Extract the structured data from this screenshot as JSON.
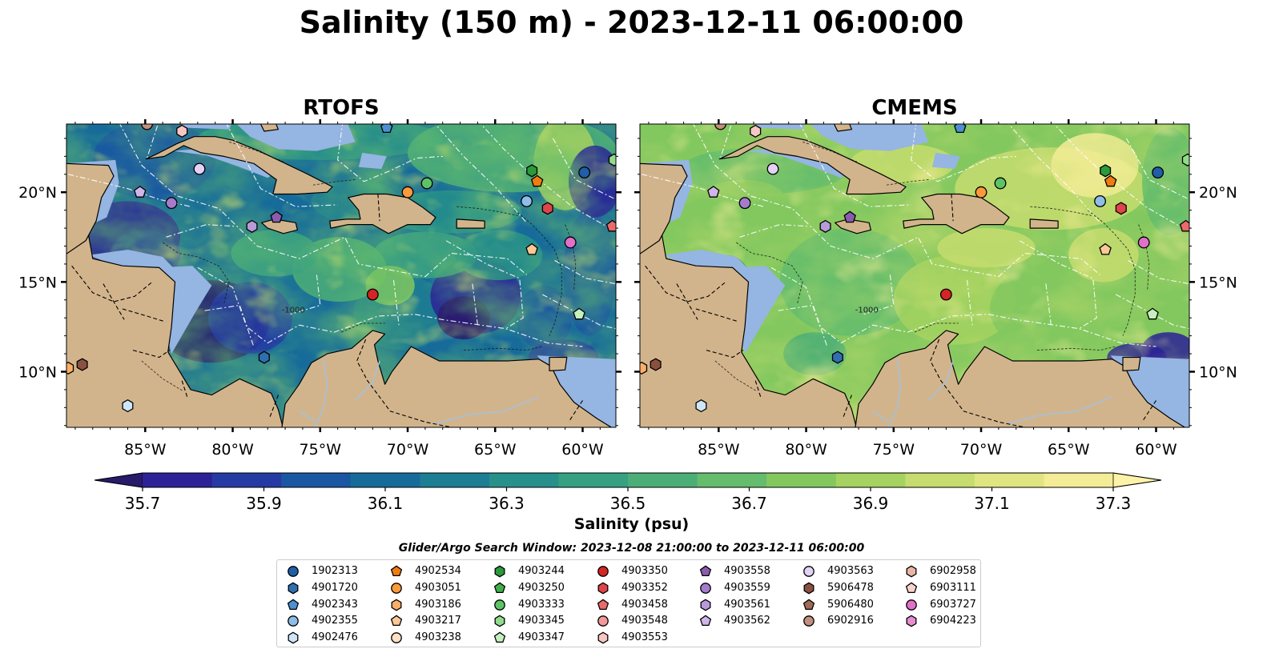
{
  "figure": {
    "title": "Salinity (150 m) - 2023-12-11 06:00:00",
    "colors": {
      "land": "#d2b48c",
      "shelf_shallow": "#95b5e2",
      "rivers": "#a7c0d8",
      "boundaries": "#000000",
      "eez_lines": "#ffffff"
    }
  },
  "panels": [
    {
      "title": "RTOFS",
      "model": "rtofs"
    },
    {
      "title": "CMEMS",
      "model": "cmems"
    }
  ],
  "axes": {
    "lon_ticks": [
      "85°W",
      "80°W",
      "75°W",
      "70°W",
      "65°W",
      "60°W"
    ],
    "lat_ticks_left": [
      "20°N",
      "15°N",
      "10°N"
    ],
    "lat_ticks_right": [
      "20°N",
      "15°N",
      "10°N"
    ],
    "lon_range": [
      -89.5,
      -58.1
    ],
    "lat_range": [
      6.9,
      23.8
    ]
  },
  "colorbar": {
    "label": "Salinity (psu)",
    "ticks": [
      "35.7",
      "35.9",
      "36.1",
      "36.3",
      "36.5",
      "36.7",
      "36.9",
      "37.1",
      "37.3"
    ],
    "range": [
      35.7,
      37.3
    ],
    "extend": "both",
    "colormap": "haline-like",
    "colors": [
      "#2a1a6a",
      "#2c2196",
      "#263aa4",
      "#1a56a2",
      "#166b9a",
      "#1d7d92",
      "#27908a",
      "#37a083",
      "#4cae77",
      "#64bc6c",
      "#83c85f",
      "#a5d260",
      "#c6dc6e",
      "#e1e581",
      "#f4ec96",
      "#fdf3a8"
    ]
  },
  "search_window": "Glider/Argo Search Window: 2023-12-08 21:00:00 to 2023-12-11 06:00:00",
  "legend": [
    [
      {
        "label": "1902313",
        "marker": "circle",
        "color": "#1f5fa8"
      },
      {
        "label": "4901720",
        "marker": "hexagon",
        "color": "#2f6fb0"
      },
      {
        "label": "4902343",
        "marker": "pentagon",
        "color": "#4d8fd0"
      },
      {
        "label": "4902355",
        "marker": "circle",
        "color": "#8fbde8"
      },
      {
        "label": "4902476",
        "marker": "hexagon",
        "color": "#cfe6f8"
      }
    ],
    [
      {
        "label": "4902534",
        "marker": "pentagon",
        "color": "#f07c10"
      },
      {
        "label": "4903051",
        "marker": "circle",
        "color": "#fb9a3a"
      },
      {
        "label": "4903186",
        "marker": "hexagon",
        "color": "#fcae68"
      },
      {
        "label": "4903217",
        "marker": "pentagon",
        "color": "#fdc796"
      },
      {
        "label": "4903238",
        "marker": "circle",
        "color": "#fee0c2"
      }
    ],
    [
      {
        "label": "4903244",
        "marker": "hexagon",
        "color": "#2a9a3a"
      },
      {
        "label": "4903250",
        "marker": "pentagon",
        "color": "#41b04a"
      },
      {
        "label": "4903333",
        "marker": "circle",
        "color": "#5cc466"
      },
      {
        "label": "4903345",
        "marker": "hexagon",
        "color": "#90dc8a"
      },
      {
        "label": "4903347",
        "marker": "pentagon",
        "color": "#c4f0bd"
      }
    ],
    [
      {
        "label": "4903350",
        "marker": "circle",
        "color": "#d42424"
      },
      {
        "label": "4903352",
        "marker": "hexagon",
        "color": "#e0444a"
      },
      {
        "label": "4903458",
        "marker": "pentagon",
        "color": "#ea6a6a"
      },
      {
        "label": "4903548",
        "marker": "circle",
        "color": "#f29a9a"
      },
      {
        "label": "4903553",
        "marker": "hexagon",
        "color": "#f8c6c2"
      }
    ],
    [
      {
        "label": "4903558",
        "marker": "pentagon",
        "color": "#8a5cb0"
      },
      {
        "label": "4903559",
        "marker": "circle",
        "color": "#a57ccc"
      },
      {
        "label": "4903561",
        "marker": "hexagon",
        "color": "#b99ad8"
      },
      {
        "label": "4903562",
        "marker": "pentagon",
        "color": "#cfb6ea"
      }
    ],
    [
      {
        "label": "4903563",
        "marker": "circle",
        "color": "#e3d2f4"
      },
      {
        "label": "5906478",
        "marker": "hexagon",
        "color": "#8a5040"
      },
      {
        "label": "5906480",
        "marker": "pentagon",
        "color": "#a06a58"
      },
      {
        "label": "6902916",
        "marker": "circle",
        "color": "#c2907e"
      }
    ],
    [
      {
        "label": "6902958",
        "marker": "hexagon",
        "color": "#e8b6a6"
      },
      {
        "label": "6903111",
        "marker": "pentagon",
        "color": "#f6d4cc"
      },
      {
        "label": "6903727",
        "marker": "circle",
        "color": "#e070c8"
      },
      {
        "label": "6904223",
        "marker": "hexagon",
        "color": "#e88cd2"
      }
    ]
  ],
  "floats": [
    {
      "id": "1902313",
      "marker": "circle",
      "color": "#1f5fa8",
      "lon": -59.9,
      "lat": 21.1
    },
    {
      "id": "4902343",
      "marker": "pentagon",
      "color": "#4d8fd0",
      "lon": -71.2,
      "lat": 23.6
    },
    {
      "id": "4902355",
      "marker": "circle",
      "color": "#8fbde8",
      "lon": -63.2,
      "lat": 19.5
    },
    {
      "id": "4902476",
      "marker": "hexagon",
      "color": "#cfe6f8",
      "lon": -86.0,
      "lat": 8.1
    },
    {
      "id": "4901720",
      "marker": "hexagon",
      "color": "#2f6fb0",
      "lon": -78.2,
      "lat": 10.8
    },
    {
      "id": "4902534",
      "marker": "pentagon",
      "color": "#f07c10",
      "lon": -62.6,
      "lat": 20.6
    },
    {
      "id": "4903051",
      "marker": "circle",
      "color": "#fb9a3a",
      "lon": -70.0,
      "lat": 20.0
    },
    {
      "id": "4903186",
      "marker": "hexagon",
      "color": "#fcae68",
      "lon": -89.4,
      "lat": 10.2
    },
    {
      "id": "4903217",
      "marker": "pentagon",
      "color": "#fdc796",
      "lon": -62.9,
      "lat": 16.8
    },
    {
      "id": "4903244",
      "marker": "hexagon",
      "color": "#2a9a3a",
      "lon": -62.9,
      "lat": 21.2
    },
    {
      "id": "4903333",
      "marker": "circle",
      "color": "#5cc466",
      "lon": -68.9,
      "lat": 20.5
    },
    {
      "id": "4903345",
      "marker": "hexagon",
      "color": "#90dc8a",
      "lon": -58.2,
      "lat": 21.8
    },
    {
      "id": "4903347",
      "marker": "pentagon",
      "color": "#c4f0bd",
      "lon": -60.2,
      "lat": 13.2
    },
    {
      "id": "4903350",
      "marker": "circle",
      "color": "#d42424",
      "lon": -72.0,
      "lat": 14.3
    },
    {
      "id": "4903352",
      "marker": "hexagon",
      "color": "#e0444a",
      "lon": -62.0,
      "lat": 19.1
    },
    {
      "id": "4903458",
      "marker": "pentagon",
      "color": "#ea6a6a",
      "lon": -58.3,
      "lat": 18.1
    },
    {
      "id": "4903553",
      "marker": "hexagon",
      "color": "#f8c6c2",
      "lon": -82.9,
      "lat": 23.4
    },
    {
      "id": "4903558",
      "marker": "pentagon",
      "color": "#8a5cb0",
      "lon": -77.5,
      "lat": 18.6
    },
    {
      "id": "4903559",
      "marker": "circle",
      "color": "#a57ccc",
      "lon": -83.5,
      "lat": 19.4
    },
    {
      "id": "4903561",
      "marker": "hexagon",
      "color": "#b99ad8",
      "lon": -78.9,
      "lat": 18.1
    },
    {
      "id": "4903562",
      "marker": "pentagon",
      "color": "#cfb6ea",
      "lon": -85.3,
      "lat": 20.0
    },
    {
      "id": "4903563",
      "marker": "circle",
      "color": "#e3d2f4",
      "lon": -81.9,
      "lat": 21.3
    },
    {
      "id": "5906478",
      "marker": "hexagon",
      "color": "#8a5040",
      "lon": -88.6,
      "lat": 10.4
    },
    {
      "id": "6903727",
      "marker": "circle",
      "color": "#e070c8",
      "lon": -60.7,
      "lat": 17.2
    },
    {
      "id": "6902916",
      "marker": "circle",
      "color": "#c2907e",
      "lon": -84.9,
      "lat": 23.8
    }
  ],
  "contour_label": "-1000"
}
